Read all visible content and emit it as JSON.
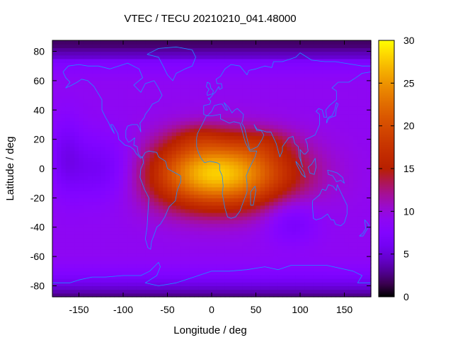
{
  "chart_data": {
    "type": "heatmap",
    "title": "VTEC / TECU 20210210_041.48000",
    "xlabel": "Longitude / deg",
    "ylabel": "Latitude / deg",
    "xlim": [
      -180,
      180
    ],
    "ylim": [
      -87.5,
      87.5
    ],
    "x_ticks": [
      -150,
      -100,
      -50,
      0,
      50,
      100,
      150
    ],
    "y_ticks": [
      -80,
      -60,
      -40,
      -20,
      0,
      20,
      40,
      60,
      80
    ],
    "colorbar": {
      "range": [
        0,
        30
      ],
      "ticks": [
        0,
        5,
        10,
        15,
        20,
        25,
        30
      ],
      "palette": "black-blue-purple-red-orange-yellow"
    },
    "grid": false,
    "field_features": {
      "background_tecu": 9,
      "equatorial_peak": {
        "lon": 5,
        "lat": -3,
        "value_tecu": 28
      },
      "polar_minimum_tecu": 2
    },
    "overlay": "coastlines"
  },
  "colors": {
    "coastline": "#1e90ff",
    "axes": "#000000",
    "background": "#ffffff"
  }
}
